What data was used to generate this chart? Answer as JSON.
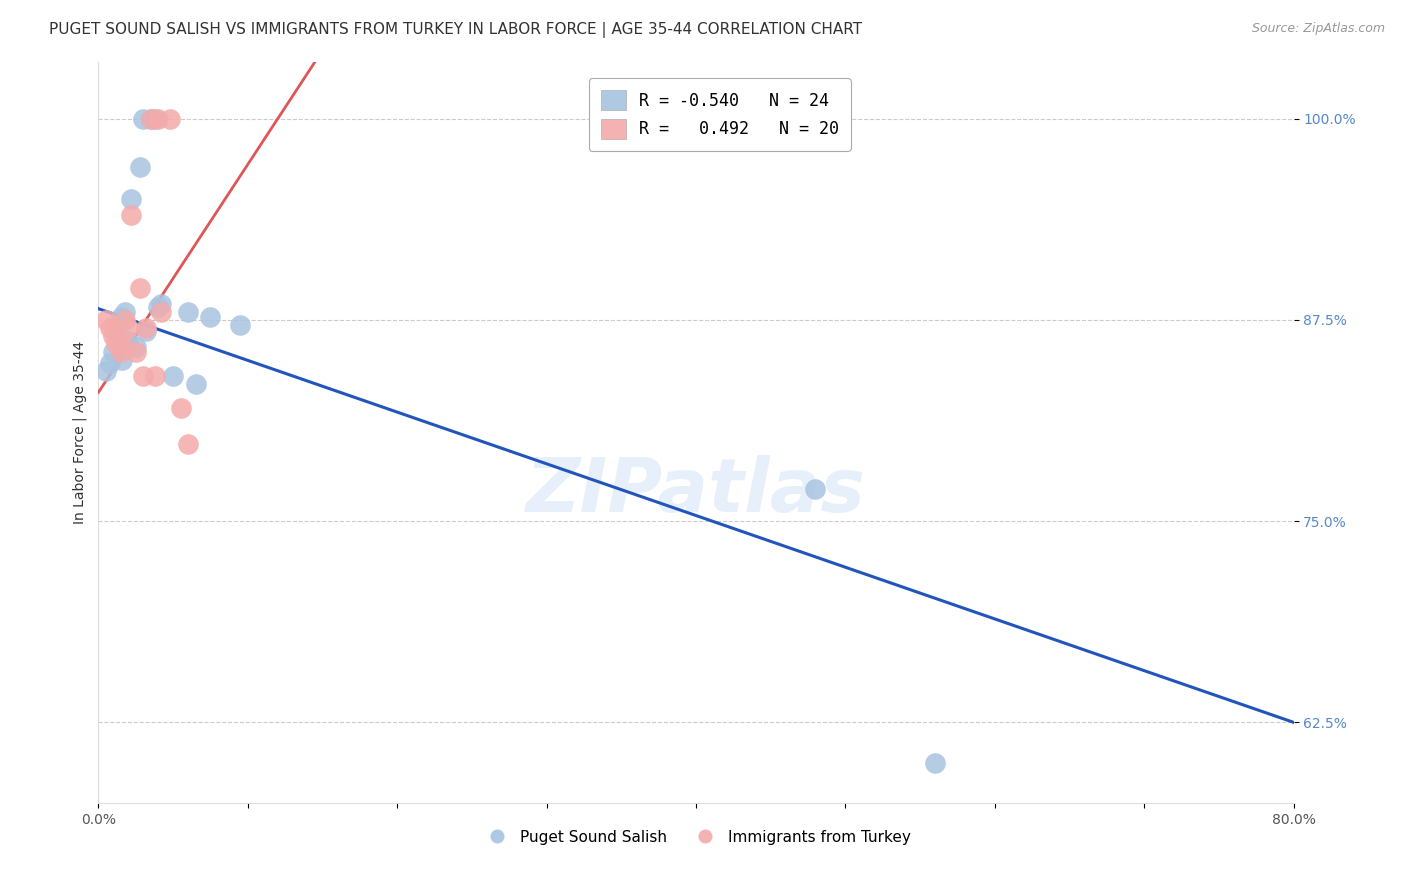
{
  "title": "PUGET SOUND SALISH VS IMMIGRANTS FROM TURKEY IN LABOR FORCE | AGE 35-44 CORRELATION CHART",
  "source": "Source: ZipAtlas.com",
  "ylabel": "In Labor Force | Age 35-44",
  "xlim": [
    0.0,
    0.8
  ],
  "ylim": [
    0.575,
    1.035
  ],
  "xticks": [
    0.0,
    0.1,
    0.2,
    0.3,
    0.4,
    0.5,
    0.6,
    0.7,
    0.8
  ],
  "xticklabels": [
    "0.0%",
    "",
    "",
    "",
    "",
    "",
    "",
    "",
    "80.0%"
  ],
  "yticks": [
    0.625,
    0.75,
    0.875,
    1.0
  ],
  "yticklabels": [
    "62.5%",
    "75.0%",
    "87.5%",
    "100.0%"
  ],
  "blue_r": -0.54,
  "blue_n": 24,
  "pink_r": 0.492,
  "pink_n": 20,
  "legend_label_blue": "Puget Sound Salish",
  "legend_label_pink": "Immigrants from Turkey",
  "blue_color": "#A8C4E0",
  "pink_color": "#F4AAAA",
  "blue_line_color": "#2255BB",
  "pink_line_color": "#E05555",
  "watermark": "ZIPatlas",
  "blue_points_x": [
    0.03,
    0.035,
    0.038,
    0.028,
    0.022,
    0.018,
    0.015,
    0.042,
    0.06,
    0.075,
    0.095,
    0.01,
    0.02,
    0.025,
    0.012,
    0.48,
    0.56,
    0.008,
    0.005,
    0.032,
    0.016,
    0.04,
    0.05,
    0.065
  ],
  "blue_points_y": [
    1.0,
    1.0,
    1.0,
    0.97,
    0.95,
    0.88,
    0.877,
    0.885,
    0.88,
    0.877,
    0.872,
    0.855,
    0.862,
    0.858,
    0.87,
    0.77,
    0.6,
    0.848,
    0.843,
    0.868,
    0.85,
    0.883,
    0.84,
    0.835
  ],
  "pink_points_x": [
    0.005,
    0.008,
    0.01,
    0.012,
    0.015,
    0.018,
    0.02,
    0.025,
    0.03,
    0.035,
    0.04,
    0.048,
    0.022,
    0.028,
    0.032,
    0.038,
    0.055,
    0.06,
    0.042,
    0.016
  ],
  "pink_points_y": [
    0.875,
    0.87,
    0.865,
    0.86,
    0.855,
    0.875,
    0.87,
    0.855,
    0.84,
    1.0,
    1.0,
    1.0,
    0.94,
    0.895,
    0.87,
    0.84,
    0.82,
    0.798,
    0.88,
    0.86
  ],
  "background_color": "#FFFFFF",
  "grid_color": "#CCCCCC",
  "title_fontsize": 11,
  "axis_label_fontsize": 10,
  "tick_fontsize": 10,
  "ytick_color": "#5588CC",
  "title_color": "#333333"
}
